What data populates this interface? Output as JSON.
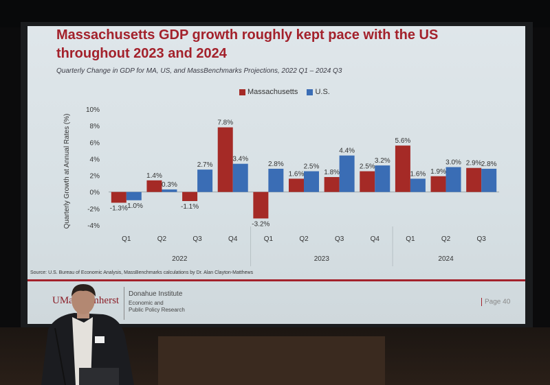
{
  "slide": {
    "title_line1": "Massachusetts GDP growth roughly kept pace with the US",
    "title_line2": "throughout 2023 and 2024",
    "subtitle": "Quarterly Change in GDP for MA, US, and MassBenchmarks Projections, 2022 Q1 – 2024 Q3",
    "source": "Source: U.S. Bureau of Economic Analysis, MassBenchmarks calculations by Dr. Alan Clayton-Matthews",
    "footer": {
      "logo_text": "UMass Amherst",
      "institute": "Donahue Institute",
      "institute_sub1": "Economic and",
      "institute_sub2": "Public Policy Research",
      "page": "Page 40"
    },
    "colors": {
      "massachusetts": "#a52a26",
      "us": "#3a6db5",
      "title": "#a3212b"
    }
  },
  "chart_data": {
    "type": "bar",
    "title": "",
    "ylabel": "Quarterly Growth at Annual Rates (%)",
    "ylim": [
      -4,
      10
    ],
    "yticks": [
      "10%",
      "8%",
      "6%",
      "4%",
      "2%",
      "0%",
      "-2%",
      "-4%"
    ],
    "ytick_values": [
      10,
      8,
      6,
      4,
      2,
      0,
      -2,
      -4
    ],
    "legend_position": "top-center",
    "categories": [
      "Q1",
      "Q2",
      "Q3",
      "Q4",
      "Q1",
      "Q2",
      "Q3",
      "Q4",
      "Q1",
      "Q2",
      "Q3"
    ],
    "groups": [
      {
        "label": "2022",
        "start": 0,
        "count": 4
      },
      {
        "label": "2023",
        "start": 4,
        "count": 4
      },
      {
        "label": "2024",
        "start": 8,
        "count": 3
      }
    ],
    "series": [
      {
        "name": "Massachusetts",
        "values": [
          -1.3,
          1.4,
          -1.1,
          7.8,
          -3.2,
          1.6,
          1.8,
          2.5,
          5.6,
          1.9,
          2.9
        ],
        "labels": [
          "-1.3%",
          "1.4%",
          "-1.1%",
          "7.8%",
          "-3.2%",
          "1.6%",
          "1.8%",
          "2.5%",
          "5.6%",
          "1.9%",
          "2.9%"
        ]
      },
      {
        "name": "U.S.",
        "values": [
          -1.0,
          0.3,
          2.7,
          3.4,
          2.8,
          2.5,
          4.4,
          3.2,
          1.6,
          3.0,
          2.8
        ],
        "labels": [
          "-1.0%",
          "0.3%",
          "2.7%",
          "3.4%",
          "2.8%",
          "2.5%",
          "4.4%",
          "3.2%",
          "1.6%",
          "3.0%",
          "2.8%"
        ]
      }
    ]
  }
}
